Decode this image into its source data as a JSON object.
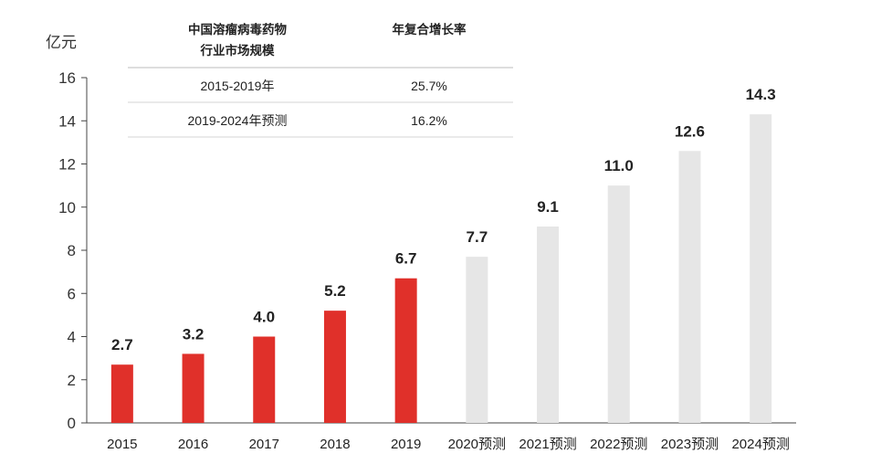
{
  "chart_data": {
    "type": "bar",
    "ylabel": "亿元",
    "ylim": [
      0,
      16
    ],
    "yticks": [
      0,
      2,
      4,
      6,
      8,
      10,
      12,
      14,
      16
    ],
    "categories": [
      "2015",
      "2016",
      "2017",
      "2018",
      "2019",
      "2020预测",
      "2021预测",
      "2022预测",
      "2023预测",
      "2024预测"
    ],
    "values": [
      2.7,
      3.2,
      4.0,
      5.2,
      6.7,
      7.7,
      9.1,
      11.0,
      12.6,
      14.3
    ],
    "value_labels": [
      "2.7",
      "3.2",
      "4.0",
      "5.2",
      "6.7",
      "7.7",
      "9.1",
      "11.0",
      "12.6",
      "14.3"
    ],
    "series_colors": {
      "actual": "#e0302a",
      "forecast": "#e6e6e6"
    },
    "forecast_start_index": 5,
    "legend_table": {
      "header_col1_line1": "中国溶瘤病毒药物",
      "header_col1_line2": "行业市场规模",
      "header_col2": "年复合增长率",
      "rows": [
        {
          "period": "2015-2019年",
          "cagr": "25.7%"
        },
        {
          "period": "2019-2024年预测",
          "cagr": "16.2%"
        }
      ]
    }
  }
}
